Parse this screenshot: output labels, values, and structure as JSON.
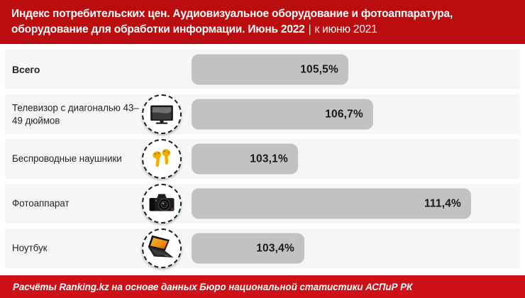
{
  "header": {
    "line1": "Индекс потребительских цен. Аудиовизуальное оборудование и фотоаппаратура,",
    "line2_bold": "оборудование для обработки информации. Июнь 2022",
    "separator": "|",
    "line2_light": "к июню 2021"
  },
  "chart_data": {
    "type": "bar",
    "orientation": "horizontal",
    "title": "Индекс потребительских цен. Аудиовизуальное оборудование и фотоаппаратура, оборудование для обработки информации. Июнь 2022 | к июню 2021",
    "categories": [
      "Всего",
      "Телевизор с диагональю 43–49 дюймов",
      "Беспроводные наушники",
      "Фотоаппарат",
      "Ноутбук"
    ],
    "values": [
      105.5,
      106.7,
      103.1,
      111.4,
      103.4
    ],
    "value_labels": [
      "105,5%",
      "106,7%",
      "103,1%",
      "111,4%",
      "103,4%"
    ],
    "icons": [
      null,
      "tv-icon",
      "earbuds-icon",
      "camera-icon",
      "laptop-icon"
    ],
    "bold_categories": [
      true,
      false,
      false,
      false,
      false
    ],
    "unit": "%",
    "xlim": [
      98,
      113.5
    ],
    "grid": false,
    "legend": false,
    "bar_color": "#c2c2c2",
    "row_background": "#f6f6f6"
  },
  "footer": {
    "text": "Расчёты Ranking.kz на основе данных Бюро национальной статистики АСПиР РК"
  },
  "colors": {
    "header_background": "#b90d10",
    "footer_background": "#cd1117",
    "bar_gray": "#c2c2c2",
    "earbuds_yellow": "#efaf00",
    "text_dark": "#1a1a1a"
  }
}
